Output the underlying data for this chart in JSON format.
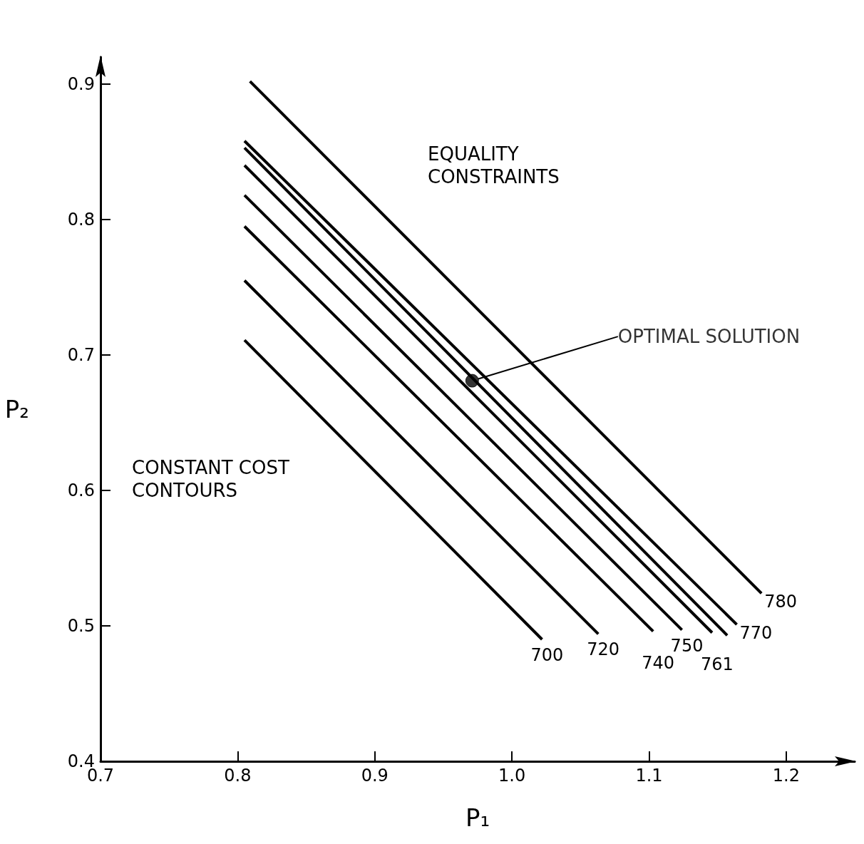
{
  "chart_data": {
    "type": "line",
    "xlabel": "P₁",
    "ylabel": "P₂",
    "xlim": [
      0.7,
      1.25
    ],
    "ylim": [
      0.4,
      0.92
    ],
    "xticks": [
      0.7,
      0.8,
      0.9,
      {
        "value": 1,
        "label": "1.0"
      },
      1.1,
      1.2
    ],
    "yticks": [
      0.4,
      0.5,
      0.6,
      0.7,
      0.8,
      0.9
    ],
    "grid": false,
    "legend": false,
    "marker": "none",
    "annotations": [
      "EQUALITY CONSTRAINTS",
      {
        "text": "OPTIMAL SOLUTION",
        "x": 0.971,
        "y": 0.681
      },
      "CONSTANT COST CONTOURS"
    ],
    "series": [
      {
        "name": "700",
        "color": "#000000",
        "x": [
          0.805,
          1.022
        ],
        "values": [
          0.711,
          0.49
        ]
      },
      {
        "name": "720",
        "color": "#000000",
        "x": [
          0.805,
          1.063
        ],
        "values": [
          0.755,
          0.494
        ]
      },
      {
        "name": "740",
        "color": "#000000",
        "x": [
          0.805,
          1.103
        ],
        "values": [
          0.795,
          0.496
        ]
      },
      {
        "name": "750",
        "color": "#000000",
        "x": [
          0.805,
          1.124
        ],
        "values": [
          0.818,
          0.497
        ]
      },
      {
        "name": "761",
        "color": "#000000",
        "x": [
          0.805,
          1.146
        ],
        "values": [
          0.84,
          0.495
        ]
      },
      {
        "color": "#000000",
        "x": [
          0.805,
          1.157
        ],
        "values": [
          0.853,
          0.493
        ]
      },
      {
        "name": "770",
        "color": "#000000",
        "x": [
          0.805,
          1.164
        ],
        "values": [
          0.858,
          0.501
        ]
      },
      {
        "name": "780",
        "color": "#000000",
        "x": [
          0.809,
          1.182
        ],
        "values": [
          0.902,
          0.524
        ]
      },
      {
        "type": "scatter",
        "marker": "circle",
        "color": "#000000",
        "x": [
          0.971
        ],
        "values": [
          0.681
        ]
      }
    ]
  }
}
